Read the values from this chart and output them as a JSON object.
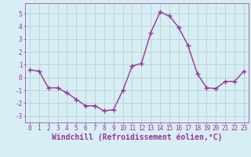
{
  "x": [
    0,
    1,
    2,
    3,
    4,
    5,
    6,
    7,
    8,
    9,
    10,
    11,
    12,
    13,
    14,
    15,
    16,
    17,
    18,
    19,
    20,
    21,
    22,
    23
  ],
  "y": [
    0.6,
    0.5,
    -0.8,
    -0.8,
    -1.2,
    -1.7,
    -2.2,
    -2.2,
    -2.6,
    -2.5,
    -1.0,
    0.9,
    1.1,
    3.5,
    5.1,
    4.8,
    3.9,
    2.5,
    0.3,
    -0.8,
    -0.85,
    -0.3,
    -0.3,
    0.5
  ],
  "line_color": "#993399",
  "marker": "D",
  "marker_size": 2.0,
  "xlabel": "Windchill (Refroidissement éolien,°C)",
  "xlabel_fontsize": 7,
  "ylim": [
    -3.5,
    5.8
  ],
  "xlim": [
    -0.5,
    23.5
  ],
  "yticks": [
    -3,
    -2,
    -1,
    0,
    1,
    2,
    3,
    4,
    5
  ],
  "xticks": [
    0,
    1,
    2,
    3,
    4,
    5,
    6,
    7,
    8,
    9,
    10,
    11,
    12,
    13,
    14,
    15,
    16,
    17,
    18,
    19,
    20,
    21,
    22,
    23
  ],
  "bg_color": "#d7eef4",
  "grid_color": "#b0cccc",
  "tick_fontsize": 5.5,
  "line_width": 1.0
}
